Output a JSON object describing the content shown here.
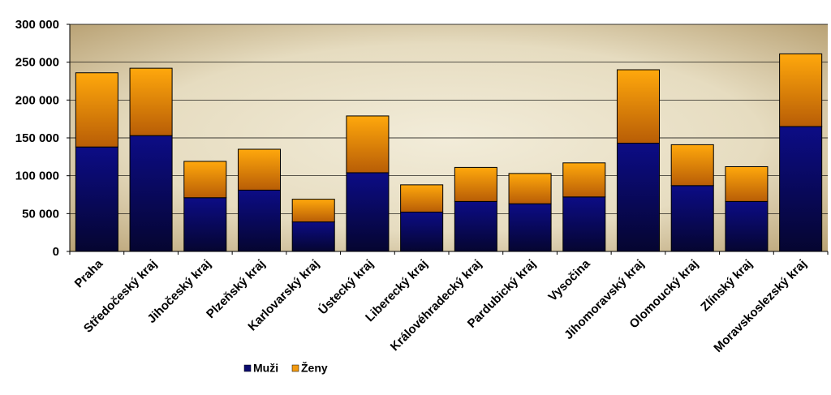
{
  "chart_data": {
    "type": "bar",
    "stacked": true,
    "categories": [
      "Praha",
      "Středočeský kraj",
      "Jihočeský kraj",
      "Plzeňský kraj",
      "Karlovarský kraj",
      "Ústecký kraj",
      "Liberecký kraj",
      "Královéhradecký kraj",
      "Pardubický kraj",
      "Vysočina",
      "Jihomoravský kraj",
      "Olomoucký kraj",
      "Zlínský kraj",
      "Moravskoslezský kraj"
    ],
    "series": [
      {
        "name": "Muži",
        "color": "#0b0b6e",
        "values": [
          138000,
          153000,
          71000,
          81000,
          39000,
          104000,
          52000,
          66000,
          63000,
          72000,
          143000,
          87000,
          66000,
          165000
        ]
      },
      {
        "name": "Ženy",
        "color": "#f39a10",
        "values": [
          98000,
          89000,
          48000,
          54000,
          30000,
          75000,
          36000,
          45000,
          40000,
          45000,
          97000,
          54000,
          46000,
          96000
        ]
      }
    ],
    "yticks": [
      "0",
      "50 000",
      "100 000",
      "150 000",
      "200 000",
      "250 000",
      "300 000"
    ],
    "ylim": [
      0,
      300000
    ],
    "ytick_step": 50000,
    "grid": true,
    "legend_position": "bottom",
    "plot_background": [
      "#b39a6a",
      "#f2ecd9"
    ]
  }
}
